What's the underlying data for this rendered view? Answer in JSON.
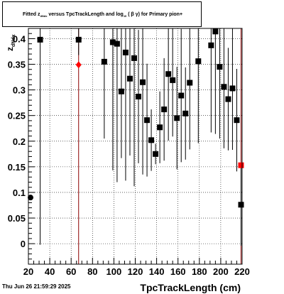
{
  "title": {
    "prefix": "Fitted  z",
    "sub1": "dNdx",
    "mid": "  versus TpcTrackLength and log",
    "sub2": "10",
    "suffix": " ( β γ) for Primary pion+"
  },
  "timestamp": "Thu Jun 26 21:59:29 2025",
  "chart_data": {
    "type": "scatter",
    "xlabel": "TpcTrackLength (cm)",
    "ylabel": "z_{dNdx}",
    "xlim": [
      20,
      220
    ],
    "ylim": [
      -0.04,
      0.42
    ],
    "x_ticks": [
      20,
      40,
      60,
      80,
      100,
      120,
      140,
      160,
      180,
      200,
      220
    ],
    "y_ticks": [
      0,
      0.05,
      0.1,
      0.15,
      0.2,
      0.25,
      0.3,
      0.35,
      0.4
    ],
    "y_tick_labels": [
      "0",
      "0.05",
      "0.1",
      "0.15",
      "0.2",
      "0.25",
      "0.3",
      "0.35",
      "0.4"
    ],
    "grid": true,
    "colors": {
      "points": "#000000",
      "red_points": "#ff0000",
      "red_lines": "#8b0000"
    },
    "red_vertical_lines_x": [
      67,
      219
    ],
    "series": [
      {
        "marker": "square",
        "color": "#000000",
        "points": [
          {
            "x": 31,
            "y": 0.398,
            "err": 0.4
          },
          {
            "x": 67,
            "y": 0.398,
            "err": 0.03
          },
          {
            "x": 91,
            "y": 0.355,
            "err": 0.15
          },
          {
            "x": 99,
            "y": 0.393,
            "err": 0.25
          },
          {
            "x": 103,
            "y": 0.39,
            "err": 0.27
          },
          {
            "x": 107,
            "y": 0.297,
            "err": 0.13
          },
          {
            "x": 111,
            "y": 0.373,
            "err": 0.25
          },
          {
            "x": 115,
            "y": 0.322,
            "err": 0.15
          },
          {
            "x": 119,
            "y": 0.362,
            "err": 0.25
          },
          {
            "x": 123,
            "y": 0.287,
            "err": 0.13
          },
          {
            "x": 127,
            "y": 0.315,
            "err": 0.18
          },
          {
            "x": 131,
            "y": 0.241,
            "err": 0.11
          },
          {
            "x": 135,
            "y": 0.202,
            "err": 0.06
          },
          {
            "x": 139,
            "y": 0.175,
            "err": 0.02
          },
          {
            "x": 143,
            "y": 0.227,
            "err": 0.07
          },
          {
            "x": 147,
            "y": 0.262,
            "err": 0.1
          },
          {
            "x": 151,
            "y": 0.331,
            "err": 0.13
          },
          {
            "x": 155,
            "y": 0.319,
            "err": 0.11
          },
          {
            "x": 159,
            "y": 0.245,
            "err": 0.1
          },
          {
            "x": 163,
            "y": 0.289,
            "err": 0.13
          },
          {
            "x": 167,
            "y": 0.254,
            "err": 0.09
          },
          {
            "x": 171,
            "y": 0.314,
            "err": 0.13
          },
          {
            "x": 179,
            "y": 0.356,
            "err": 0.16
          },
          {
            "x": 191,
            "y": 0.387,
            "err": 0.17
          },
          {
            "x": 195,
            "y": 0.414,
            "err": 0.2
          },
          {
            "x": 199,
            "y": 0.345,
            "err": 0.14
          },
          {
            "x": 203,
            "y": 0.306,
            "err": 0.12
          },
          {
            "x": 207,
            "y": 0.282,
            "err": 0.1
          },
          {
            "x": 211,
            "y": 0.303,
            "err": 0.12
          },
          {
            "x": 215,
            "y": 0.241,
            "err": 0.1
          },
          {
            "x": 219,
            "y": 0.076,
            "err": 0.08
          }
        ]
      },
      {
        "marker": "diamond",
        "color": "#ff0000",
        "points": [
          {
            "x": 67,
            "y": 0.349
          }
        ]
      },
      {
        "marker": "square",
        "color": "#ff0000",
        "points": [
          {
            "x": 219,
            "y": 0.153
          }
        ]
      },
      {
        "marker": "circle",
        "color": "#000000",
        "points": [
          {
            "x": 22,
            "y": 0.09
          }
        ]
      }
    ]
  }
}
